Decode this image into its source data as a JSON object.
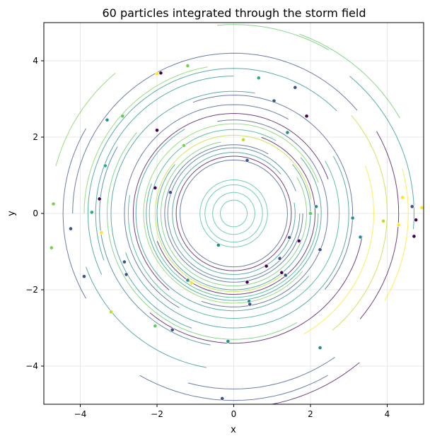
{
  "chart_data": {
    "type": "line",
    "title": "60 particles integrated through the storm field",
    "xlabel": "x",
    "ylabel": "y",
    "xlim": [
      -4.95,
      4.95
    ],
    "ylim": [
      -5,
      5
    ],
    "xticks": [
      -4,
      -2,
      0,
      2,
      4
    ],
    "yticks": [
      -4,
      -2,
      0,
      2,
      4
    ],
    "grid": true,
    "legend": "none",
    "colormap": [
      "#440154",
      "#3b528b",
      "#21918c",
      "#5ec962",
      "#fde725"
    ],
    "series": [
      {
        "r": 0.35,
        "start": 0,
        "sweep": 360,
        "color": "#3fbf96"
      },
      {
        "r": 0.55,
        "start": 0,
        "sweep": 360,
        "color": "#3fbf96"
      },
      {
        "r": 0.75,
        "start": 0,
        "sweep": 360,
        "color": "#3fbf96"
      },
      {
        "r": 0.88,
        "start": 30,
        "sweep": 360,
        "color": "#3fbf96"
      },
      {
        "r": 1.4,
        "start": 0,
        "sweep": 360,
        "color": "#3b528b"
      },
      {
        "r": 1.5,
        "start": 10,
        "sweep": 360,
        "color": "#440154"
      },
      {
        "r": 1.6,
        "start": 40,
        "sweep": 330,
        "color": "#21918c"
      },
      {
        "r": 1.72,
        "start": 20,
        "sweep": 340,
        "color": "#2c728e"
      },
      {
        "r": 1.8,
        "start": 60,
        "sweep": 300,
        "color": "#3b528b"
      },
      {
        "r": 1.9,
        "start": 100,
        "sweep": 290,
        "color": "#5ec962"
      },
      {
        "r": 2.0,
        "start": 140,
        "sweep": 260,
        "color": "#21918c"
      },
      {
        "r": 2.05,
        "start": 10,
        "sweep": 300,
        "color": "#bddf26"
      },
      {
        "r": 2.12,
        "start": 200,
        "sweep": 230,
        "color": "#440154"
      },
      {
        "r": 2.2,
        "start": 60,
        "sweep": 300,
        "color": "#28ae80"
      },
      {
        "r": 2.28,
        "start": 160,
        "sweep": 240,
        "color": "#21918c"
      },
      {
        "r": 2.35,
        "start": 20,
        "sweep": 300,
        "color": "#7ad151"
      },
      {
        "r": 2.45,
        "start": 250,
        "sweep": 210,
        "color": "#3b528b"
      },
      {
        "r": 2.55,
        "start": 120,
        "sweep": 200,
        "color": "#21918c"
      },
      {
        "r": 2.62,
        "start": 20,
        "sweep": 210,
        "color": "#440154"
      },
      {
        "r": 2.75,
        "start": 170,
        "sweep": 220,
        "color": "#28ae80"
      },
      {
        "r": 2.85,
        "start": 60,
        "sweep": 180,
        "color": "#3b528b"
      },
      {
        "r": 3.0,
        "start": 200,
        "sweep": 190,
        "color": "#21918c"
      },
      {
        "r": 3.1,
        "start": 320,
        "sweep": 150,
        "color": "#3b528b"
      },
      {
        "r": 3.2,
        "start": 80,
        "sweep": 170,
        "color": "#21918c"
      },
      {
        "r": 3.3,
        "start": 140,
        "sweep": 160,
        "color": "#5ec962"
      },
      {
        "r": 3.4,
        "start": 230,
        "sweep": 120,
        "color": "#440154"
      },
      {
        "r": 3.5,
        "start": 150,
        "sweep": 110,
        "color": "#2c728e"
      },
      {
        "r": 3.6,
        "start": 90,
        "sweep": 110,
        "color": "#21918c"
      },
      {
        "r": 3.65,
        "start": 300,
        "sweep": 80,
        "color": "#fde725"
      },
      {
        "r": 3.8,
        "start": 45,
        "sweep": 160,
        "color": "#21918c"
      },
      {
        "r": 3.9,
        "start": 100,
        "sweep": 80,
        "color": "#7ad151"
      },
      {
        "r": 4.0,
        "start": 310,
        "sweep": 90,
        "color": "#bddf26"
      },
      {
        "r": 4.1,
        "start": 200,
        "sweep": 60,
        "color": "#21918c"
      },
      {
        "r": 4.2,
        "start": 40,
        "sweep": 140,
        "color": "#3b528b"
      },
      {
        "r": 4.3,
        "start": 320,
        "sweep": 70,
        "color": "#440154"
      },
      {
        "r": 4.45,
        "start": 150,
        "sweep": 60,
        "color": "#3b528b"
      },
      {
        "r": 4.6,
        "start": 255,
        "sweep": 50,
        "color": "#3b528b"
      },
      {
        "r": 4.7,
        "start": 355,
        "sweep": 55,
        "color": "#21918c"
      },
      {
        "r": 4.8,
        "start": 130,
        "sweep": 35,
        "color": "#7ad151"
      },
      {
        "r": 4.9,
        "start": 240,
        "sweep": 60,
        "color": "#3b528b"
      },
      {
        "r": 5.0,
        "start": 30,
        "sweep": 40,
        "color": "#5ec962"
      },
      {
        "r": 5.1,
        "start": 265,
        "sweep": 45,
        "color": "#440154"
      },
      {
        "r": 4.95,
        "start": 60,
        "sweep": 35,
        "color": "#5ec962"
      },
      {
        "r": 4.55,
        "start": 330,
        "sweep": 45,
        "color": "#fde725"
      }
    ],
    "points": [
      {
        "x": -1.9,
        "y": 3.68,
        "color": "#440154"
      },
      {
        "x": -2.0,
        "y": 3.66,
        "color": "#fde725"
      },
      {
        "x": -1.2,
        "y": 3.87,
        "color": "#7ad151"
      },
      {
        "x": 0.65,
        "y": 3.55,
        "color": "#28ae80"
      },
      {
        "x": 1.6,
        "y": 3.3,
        "color": "#3b528b"
      },
      {
        "x": 1.05,
        "y": 2.95,
        "color": "#3b528b"
      },
      {
        "x": 1.9,
        "y": 2.55,
        "color": "#440154"
      },
      {
        "x": -2.9,
        "y": 2.55,
        "color": "#5ec962"
      },
      {
        "x": -3.3,
        "y": 2.45,
        "color": "#21918c"
      },
      {
        "x": -2.0,
        "y": 2.18,
        "color": "#440154"
      },
      {
        "x": 1.4,
        "y": 2.12,
        "color": "#21918c"
      },
      {
        "x": -1.3,
        "y": 1.78,
        "color": "#7ad151"
      },
      {
        "x": 0.25,
        "y": 1.93,
        "color": "#bddf26"
      },
      {
        "x": 0.35,
        "y": 1.39,
        "color": "#3b528b"
      },
      {
        "x": -3.35,
        "y": 1.25,
        "color": "#28ae80"
      },
      {
        "x": -2.05,
        "y": 0.67,
        "color": "#440154"
      },
      {
        "x": -1.65,
        "y": 0.55,
        "color": "#3b528b"
      },
      {
        "x": -3.5,
        "y": 0.38,
        "color": "#440154"
      },
      {
        "x": -4.7,
        "y": 0.25,
        "color": "#7ad151"
      },
      {
        "x": -3.7,
        "y": 0.03,
        "color": "#28ae80"
      },
      {
        "x": 2.0,
        "y": 0.0,
        "color": "#5ec962"
      },
      {
        "x": 2.15,
        "y": 0.18,
        "color": "#21918c"
      },
      {
        "x": 3.1,
        "y": -0.12,
        "color": "#21918c"
      },
      {
        "x": 3.9,
        "y": -0.2,
        "color": "#bddf26"
      },
      {
        "x": 4.4,
        "y": 0.42,
        "color": "#fde725"
      },
      {
        "x": 4.65,
        "y": 0.18,
        "color": "#3b528b"
      },
      {
        "x": 4.9,
        "y": 0.15,
        "color": "#fde725"
      },
      {
        "x": 4.75,
        "y": -0.17,
        "color": "#440154"
      },
      {
        "x": 4.3,
        "y": -0.3,
        "color": "#fde725"
      },
      {
        "x": -4.25,
        "y": -0.4,
        "color": "#3b528b"
      },
      {
        "x": -3.45,
        "y": -0.5,
        "color": "#fde725"
      },
      {
        "x": 3.3,
        "y": -0.62,
        "color": "#21918c"
      },
      {
        "x": 1.45,
        "y": -0.63,
        "color": "#3b528b"
      },
      {
        "x": 4.7,
        "y": -0.6,
        "color": "#440154"
      },
      {
        "x": 1.7,
        "y": -0.72,
        "color": "#440154"
      },
      {
        "x": -0.4,
        "y": -0.83,
        "color": "#21918c"
      },
      {
        "x": -4.75,
        "y": -0.9,
        "color": "#7ad151"
      },
      {
        "x": 2.25,
        "y": -0.95,
        "color": "#3b528b"
      },
      {
        "x": 1.2,
        "y": -1.18,
        "color": "#3b528b"
      },
      {
        "x": -2.85,
        "y": -1.27,
        "color": "#3b528b"
      },
      {
        "x": 0.85,
        "y": -1.38,
        "color": "#440154"
      },
      {
        "x": 1.25,
        "y": -1.55,
        "color": "#440154"
      },
      {
        "x": 1.35,
        "y": -1.62,
        "color": "#3b528b"
      },
      {
        "x": -2.8,
        "y": -1.6,
        "color": "#3b528b"
      },
      {
        "x": -3.9,
        "y": -1.65,
        "color": "#3b528b"
      },
      {
        "x": -1.2,
        "y": -1.75,
        "color": "#21918c"
      },
      {
        "x": -1.1,
        "y": -1.82,
        "color": "#fde725"
      },
      {
        "x": 0.35,
        "y": -1.8,
        "color": "#440154"
      },
      {
        "x": 0.4,
        "y": -2.3,
        "color": "#21918c"
      },
      {
        "x": 0.42,
        "y": -2.38,
        "color": "#3b528b"
      },
      {
        "x": -3.2,
        "y": -2.58,
        "color": "#bddf26"
      },
      {
        "x": -2.05,
        "y": -2.95,
        "color": "#5ec962"
      },
      {
        "x": -1.6,
        "y": -3.05,
        "color": "#3b528b"
      },
      {
        "x": -0.15,
        "y": -3.35,
        "color": "#21918c"
      },
      {
        "x": 2.25,
        "y": -3.52,
        "color": "#21918c"
      },
      {
        "x": -0.3,
        "y": -4.85,
        "color": "#3b528b"
      }
    ]
  }
}
